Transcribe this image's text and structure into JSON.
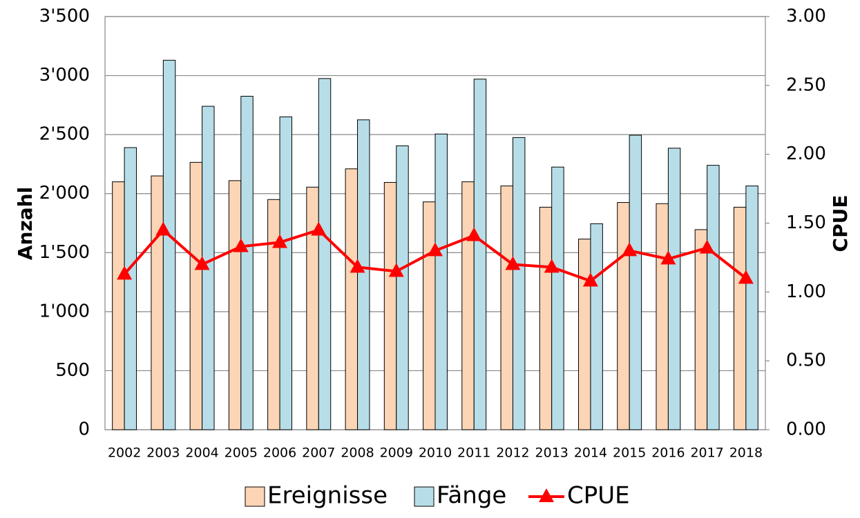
{
  "chart_data": {
    "type": "bar",
    "ylabel": "Anzahl",
    "y2label": "CPUE",
    "categories": [
      "2002",
      "2003",
      "2004",
      "2005",
      "2006",
      "2007",
      "2008",
      "2009",
      "2010",
      "2011",
      "2012",
      "2013",
      "2014",
      "2015",
      "2016",
      "2017",
      "2018"
    ],
    "series": [
      {
        "name": "Ereignisse",
        "color": "#fbd5b5",
        "values": [
          2100,
          2150,
          2265,
          2110,
          1950,
          2055,
          2210,
          2095,
          1930,
          2100,
          2065,
          1885,
          1615,
          1925,
          1915,
          1695,
          1885
        ]
      },
      {
        "name": "Fänge",
        "color": "#b7dee8",
        "values": [
          2390,
          3130,
          2740,
          2825,
          2650,
          2975,
          2625,
          2405,
          2505,
          2970,
          2475,
          2225,
          1745,
          2495,
          2385,
          2240,
          2065
        ]
      },
      {
        "name": "CPUE",
        "type": "line",
        "axis": "y2",
        "color": "#ff0000",
        "values": [
          1.13,
          1.45,
          1.2,
          1.33,
          1.36,
          1.45,
          1.18,
          1.15,
          1.3,
          1.41,
          1.2,
          1.18,
          1.08,
          1.3,
          1.24,
          1.32,
          1.1
        ]
      }
    ],
    "ylim": [
      0,
      3500
    ],
    "yticks": [
      0,
      500,
      {
        "value": 1000,
        "label": "1'000"
      },
      {
        "value": 1500,
        "label": "1'500"
      },
      {
        "value": 2000,
        "label": "2'000"
      },
      {
        "value": 2500,
        "label": "2'500"
      },
      {
        "value": 3000,
        "label": "3'000"
      },
      {
        "value": 3500,
        "label": "3'500"
      }
    ],
    "y2lim": [
      0,
      3
    ],
    "y2ticks": [
      {
        "value": 0,
        "label": "0.00"
      },
      {
        "value": 0.5,
        "label": "0.50"
      },
      {
        "value": 1,
        "label": "1.00"
      },
      {
        "value": 1.5,
        "label": "1.50"
      },
      {
        "value": 2,
        "label": "2.00"
      },
      {
        "value": 2.5,
        "label": "2.50"
      },
      {
        "value": 3,
        "label": "3.00"
      }
    ],
    "grid": true,
    "legend": "bottom"
  }
}
